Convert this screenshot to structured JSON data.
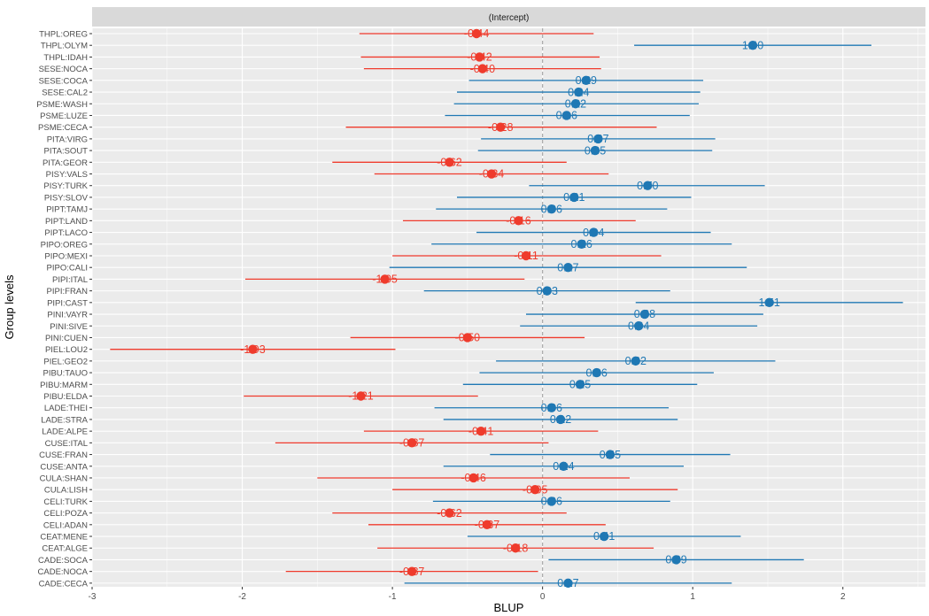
{
  "chart_data": {
    "type": "forest",
    "panel_title": "(Intercept)",
    "xlabel": "BLUP",
    "ylabel": "Group levels",
    "xlim": [
      -3.0,
      2.55
    ],
    "xticks": [
      -3,
      -2,
      -1,
      0,
      1,
      2
    ],
    "xtick_labels": [
      "-3",
      "-2",
      "-1",
      "0",
      "1",
      "2"
    ],
    "reference_line": 0,
    "colors": {
      "negative": "#ef3b2c",
      "positive": "#1f78b4"
    },
    "rows": [
      {
        "label": "THPL:OREG",
        "value": -0.44,
        "low": -1.22,
        "high": 0.34,
        "value_label": "-0.44"
      },
      {
        "label": "THPL:OLYM",
        "value": 1.4,
        "low": 0.61,
        "high": 2.19,
        "value_label": "1.40"
      },
      {
        "label": "THPL:IDAH",
        "value": -0.42,
        "low": -1.21,
        "high": 0.38,
        "value_label": "-0.42"
      },
      {
        "label": "SESE:NOCA",
        "value": -0.4,
        "low": -1.19,
        "high": 0.39,
        "value_label": "-0.40"
      },
      {
        "label": "SESE:COCA",
        "value": 0.29,
        "low": -0.49,
        "high": 1.07,
        "value_label": "0.29"
      },
      {
        "label": "SESE:CAL2",
        "value": 0.24,
        "low": -0.57,
        "high": 1.05,
        "value_label": "0.24"
      },
      {
        "label": "PSME:WASH",
        "value": 0.22,
        "low": -0.59,
        "high": 1.04,
        "value_label": "0.22"
      },
      {
        "label": "PSME:LUZE",
        "value": 0.16,
        "low": -0.65,
        "high": 0.98,
        "value_label": "0.16"
      },
      {
        "label": "PSME:CECA",
        "value": -0.28,
        "low": -1.31,
        "high": 0.76,
        "value_label": "-0.28"
      },
      {
        "label": "PITA:VIRG",
        "value": 0.37,
        "low": -0.41,
        "high": 1.15,
        "value_label": "0.37"
      },
      {
        "label": "PITA:SOUT",
        "value": 0.35,
        "low": -0.43,
        "high": 1.13,
        "value_label": "0.35"
      },
      {
        "label": "PITA:GEOR",
        "value": -0.62,
        "low": -1.4,
        "high": 0.16,
        "value_label": "-0.62"
      },
      {
        "label": "PISY:VALS",
        "value": -0.34,
        "low": -1.12,
        "high": 0.44,
        "value_label": "-0.34"
      },
      {
        "label": "PISY:TURK",
        "value": 0.7,
        "low": -0.09,
        "high": 1.48,
        "value_label": "0.70"
      },
      {
        "label": "PISY:SLOV",
        "value": 0.21,
        "low": -0.57,
        "high": 0.99,
        "value_label": "0.21"
      },
      {
        "label": "PIPT:TAMJ",
        "value": 0.06,
        "low": -0.71,
        "high": 0.83,
        "value_label": "0.06"
      },
      {
        "label": "PIPT:LAND",
        "value": -0.16,
        "low": -0.93,
        "high": 0.62,
        "value_label": "-0.16"
      },
      {
        "label": "PIPT:LACO",
        "value": 0.34,
        "low": -0.44,
        "high": 1.12,
        "value_label": "0.34"
      },
      {
        "label": "PIPO:OREG",
        "value": 0.26,
        "low": -0.74,
        "high": 1.26,
        "value_label": "0.26"
      },
      {
        "label": "PIPO:MEXI",
        "value": -0.11,
        "low": -1.0,
        "high": 0.79,
        "value_label": "-0.11"
      },
      {
        "label": "PIPO:CALI",
        "value": 0.17,
        "low": -1.02,
        "high": 1.36,
        "value_label": "0.17"
      },
      {
        "label": "PIPI:ITAL",
        "value": -1.05,
        "low": -1.98,
        "high": -0.12,
        "value_label": "-1.05"
      },
      {
        "label": "PIPI:FRAN",
        "value": 0.03,
        "low": -0.79,
        "high": 0.85,
        "value_label": "0.03"
      },
      {
        "label": "PIPI:CAST",
        "value": 1.51,
        "low": 0.62,
        "high": 2.4,
        "value_label": "1.51"
      },
      {
        "label": "PINI:VAYR",
        "value": 0.68,
        "low": -0.11,
        "high": 1.47,
        "value_label": "0.68"
      },
      {
        "label": "PINI:SIVE",
        "value": 0.64,
        "low": -0.15,
        "high": 1.43,
        "value_label": "0.64"
      },
      {
        "label": "PINI:CUEN",
        "value": -0.5,
        "low": -1.28,
        "high": 0.28,
        "value_label": "-0.50"
      },
      {
        "label": "PIEL:LOU2",
        "value": -1.93,
        "low": -2.88,
        "high": -0.98,
        "value_label": "-1.93"
      },
      {
        "label": "PIEL:GEO2",
        "value": 0.62,
        "low": -0.31,
        "high": 1.55,
        "value_label": "0.62"
      },
      {
        "label": "PIBU:TAUO",
        "value": 0.36,
        "low": -0.42,
        "high": 1.14,
        "value_label": "0.36"
      },
      {
        "label": "PIBU:MARM",
        "value": 0.25,
        "low": -0.53,
        "high": 1.03,
        "value_label": "0.25"
      },
      {
        "label": "PIBU:ELDA",
        "value": -1.21,
        "low": -1.99,
        "high": -0.43,
        "value_label": "-1.21"
      },
      {
        "label": "LADE:THEI",
        "value": 0.06,
        "low": -0.72,
        "high": 0.84,
        "value_label": "0.06"
      },
      {
        "label": "LADE:STRA",
        "value": 0.12,
        "low": -0.66,
        "high": 0.9,
        "value_label": "0.12"
      },
      {
        "label": "LADE:ALPE",
        "value": -0.41,
        "low": -1.19,
        "high": 0.37,
        "value_label": "-0.41"
      },
      {
        "label": "CUSE:ITAL",
        "value": -0.87,
        "low": -1.78,
        "high": 0.04,
        "value_label": "-0.87"
      },
      {
        "label": "CUSE:FRAN",
        "value": 0.45,
        "low": -0.35,
        "high": 1.25,
        "value_label": "0.45"
      },
      {
        "label": "CUSE:ANTA",
        "value": 0.14,
        "low": -0.66,
        "high": 0.94,
        "value_label": "0.14"
      },
      {
        "label": "CULA:SHAN",
        "value": -0.46,
        "low": -1.5,
        "high": 0.58,
        "value_label": "-0.46"
      },
      {
        "label": "CULA:LISH",
        "value": -0.05,
        "low": -1.0,
        "high": 0.9,
        "value_label": "-0.05"
      },
      {
        "label": "CELI:TURK",
        "value": 0.06,
        "low": -0.73,
        "high": 0.85,
        "value_label": "0.06"
      },
      {
        "label": "CELI:POZA",
        "value": -0.62,
        "low": -1.4,
        "high": 0.16,
        "value_label": "-0.62"
      },
      {
        "label": "CELI:ADAN",
        "value": -0.37,
        "low": -1.16,
        "high": 0.42,
        "value_label": "-0.37"
      },
      {
        "label": "CEAT:MENE",
        "value": 0.41,
        "low": -0.5,
        "high": 1.32,
        "value_label": "0.41"
      },
      {
        "label": "CEAT:ALGE",
        "value": -0.18,
        "low": -1.1,
        "high": 0.74,
        "value_label": "-0.18"
      },
      {
        "label": "CADE:SOCA",
        "value": 0.89,
        "low": 0.04,
        "high": 1.74,
        "value_label": "0.89"
      },
      {
        "label": "CADE:NOCA",
        "value": -0.87,
        "low": -1.71,
        "high": -0.03,
        "value_label": "-0.87"
      },
      {
        "label": "CADE:CECA",
        "value": 0.17,
        "low": -0.92,
        "high": 1.26,
        "value_label": "0.17"
      }
    ]
  }
}
